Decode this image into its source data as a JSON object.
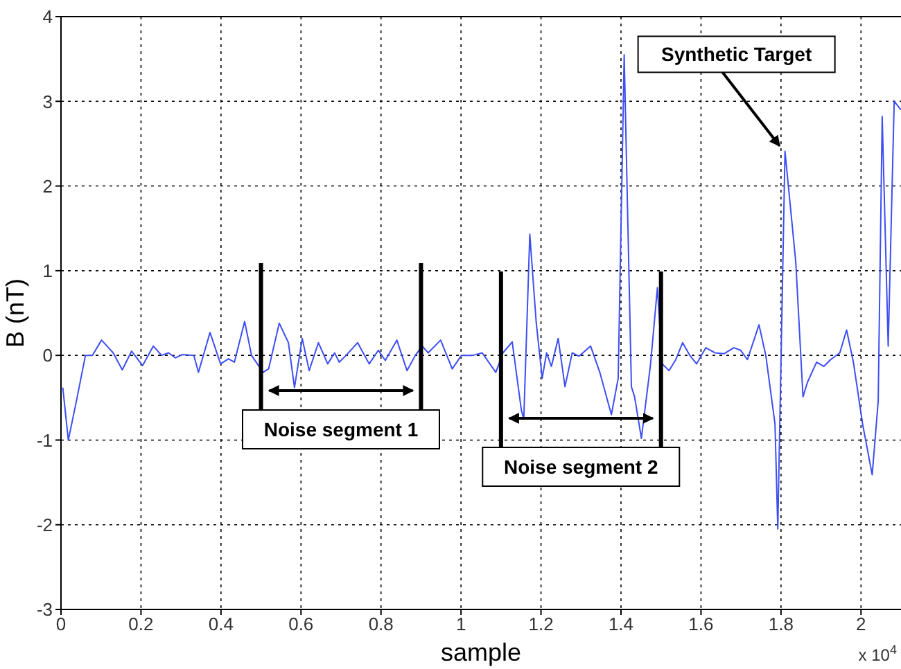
{
  "chart_data": {
    "type": "line",
    "xlabel": "sample",
    "ylabel": "B (nT)",
    "color": "#3d4ef5",
    "grid": true,
    "xlim": [
      0,
      2.1
    ],
    "ylim": [
      -3,
      4
    ],
    "xticks": [
      0,
      0.2,
      0.4,
      0.6,
      0.8,
      1,
      1.2,
      1.4,
      1.6,
      1.8,
      2
    ],
    "yticks": [
      -3,
      -2,
      -1,
      0,
      1,
      2,
      3,
      4
    ],
    "x": [
      0.0045,
      0.0183,
      0.0381,
      0.0612,
      0.0785,
      0.1014,
      0.1304,
      0.1533,
      0.1765,
      0.2041,
      0.2308,
      0.2515,
      0.2688,
      0.2861,
      0.3034,
      0.3322,
      0.3436,
      0.3726,
      0.3989,
      0.4187,
      0.4335,
      0.4591,
      0.4764,
      0.5052,
      0.519,
      0.5456,
      0.5685,
      0.5837,
      0.6031,
      0.6204,
      0.6436,
      0.6667,
      0.684,
      0.6955,
      0.7128,
      0.7415,
      0.7705,
      0.7934,
      0.8107,
      0.8397,
      0.865,
      0.8858,
      0.9031,
      0.918,
      0.9491,
      0.9781,
      1.001,
      1.03,
      1.053,
      1.087,
      1.105,
      1.128,
      1.151,
      1.157,
      1.172,
      1.188,
      1.203,
      1.214,
      1.226,
      1.243,
      1.26,
      1.278,
      1.295,
      1.324,
      1.347,
      1.376,
      1.393,
      1.408,
      1.426,
      1.434,
      1.451,
      1.474,
      1.491,
      1.503,
      1.52,
      1.537,
      1.554,
      1.572,
      1.589,
      1.612,
      1.635,
      1.658,
      1.682,
      1.699,
      1.716,
      1.745,
      1.762,
      1.785,
      1.792,
      1.81,
      1.837,
      1.855,
      1.866,
      1.889,
      1.907,
      1.924,
      1.947,
      1.964,
      1.981,
      2.004,
      2.028,
      2.043,
      2.053,
      2.068,
      2.083,
      2.1
    ],
    "values": [
      -0.38,
      -1.0,
      -0.55,
      0,
      0,
      0.18,
      0.03,
      -0.17,
      0.05,
      -0.12,
      0.11,
      0,
      0.03,
      -0.03,
      0.01,
      0,
      -0.2,
      0.27,
      -0.1,
      -0.04,
      -0.08,
      0.4,
      0,
      -0.2,
      -0.16,
      0.38,
      0.15,
      -0.38,
      0.2,
      -0.18,
      0.15,
      -0.1,
      0.03,
      -0.08,
      0,
      0.15,
      -0.1,
      0.06,
      -0.06,
      0.18,
      -0.18,
      0,
      0.11,
      0.03,
      0.18,
      -0.16,
      0,
      0,
      0.03,
      -0.2,
      0.03,
      0.16,
      -0.65,
      -0.75,
      1.43,
      0.39,
      -0.27,
      0.03,
      -0.13,
      0.2,
      -0.37,
      0.03,
      -0.01,
      0.11,
      -0.2,
      -0.7,
      -0.27,
      3.55,
      -0.37,
      -0.49,
      -0.98,
      -0.1,
      0.8,
      -0.1,
      -0.18,
      -0.05,
      0.15,
      0,
      -0.1,
      0.09,
      0.03,
      0.02,
      0.09,
      0.06,
      -0.05,
      0.36,
      0,
      -0.81,
      -2.05,
      2.41,
      1.1,
      -0.49,
      -0.32,
      -0.08,
      -0.13,
      -0.05,
      0.03,
      0.3,
      -0.08,
      -0.81,
      -1.41,
      -0.54,
      2.82,
      0.11,
      3.0,
      2.9
    ],
    "ref_lines": [
      {
        "axis": "x",
        "value": 0.5,
        "color": "#000000"
      },
      {
        "axis": "x",
        "value": 0.9,
        "color": "#000000"
      },
      {
        "axis": "x",
        "value": 1.1,
        "color": "#000000"
      },
      {
        "axis": "x",
        "value": 1.5,
        "color": "#000000"
      }
    ],
    "annotations": [
      "x 10$^{4}$",
      "Noise segment 1",
      "Noise segment 2",
      {
        "text": "Synthetic Target",
        "x": 1.81,
        "y": 2.41
      }
    ]
  }
}
